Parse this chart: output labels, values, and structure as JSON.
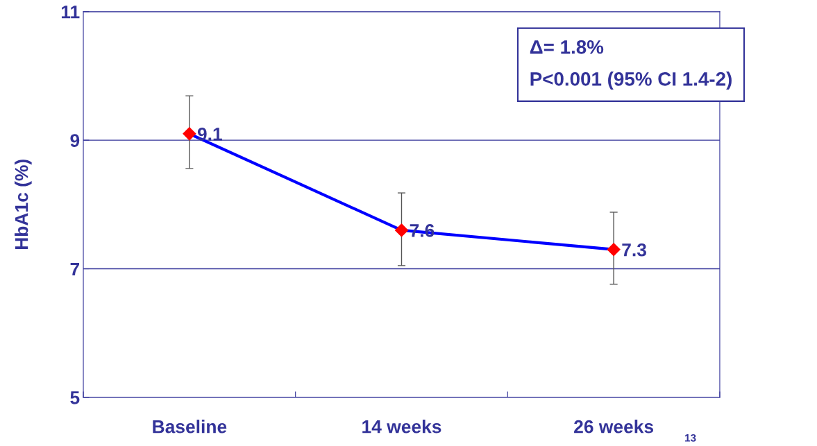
{
  "chart_data": {
    "type": "line",
    "ylabel": "HbA1c (%)",
    "categories": [
      "Baseline",
      "14 weeks",
      "26 weeks"
    ],
    "series": [
      {
        "color": "#0000ff",
        "values": [
          9.1,
          7.6,
          7.3
        ],
        "errors": [
          [
            8.56,
            9.69
          ],
          [
            7.05,
            8.18
          ],
          [
            6.76,
            7.88
          ]
        ]
      }
    ],
    "ylim": [
      5,
      11
    ],
    "yticks": [
      5,
      7,
      9,
      11
    ],
    "grid": "y",
    "marker": "diamond",
    "line_style": "solid",
    "data_labels": true,
    "legend": false,
    "annotations": [
      "Δ= 1.8%\nP<0.001 (95% CI 1.4-2)",
      "13"
    ]
  }
}
